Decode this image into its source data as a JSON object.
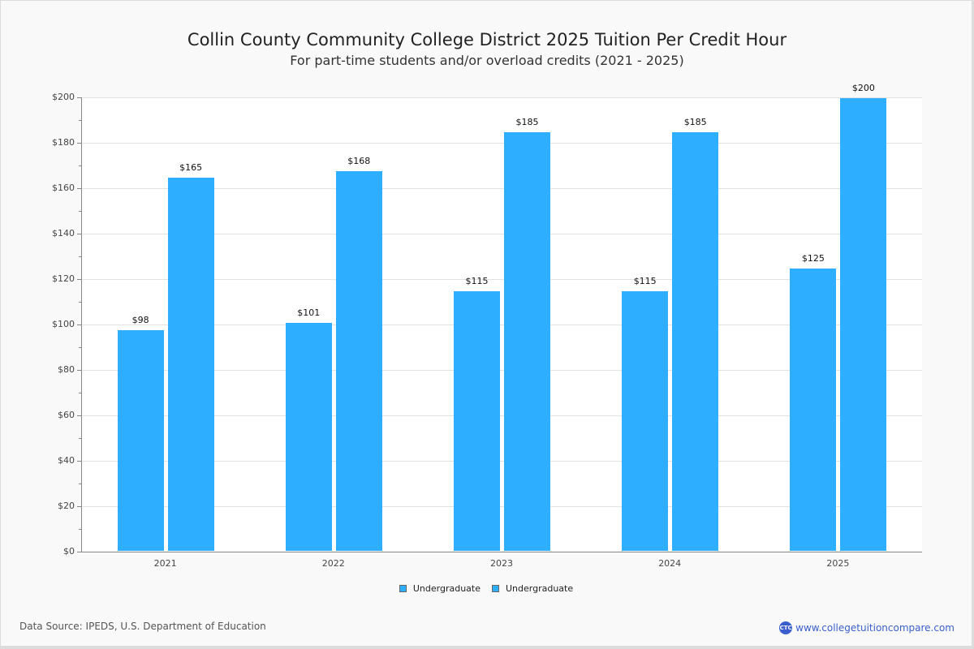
{
  "header": {
    "title": "Collin County Community College District 2025 Tuition Per Credit Hour",
    "subtitle": "For part-time students and/or overload credits (2021 - 2025)"
  },
  "y_ticks": [
    "$0",
    "$20",
    "$40",
    "$60",
    "$80",
    "$100",
    "$120",
    "$140",
    "$160",
    "$180",
    "$200"
  ],
  "legend": [
    {
      "label": "Undergraduate",
      "color": "#2eaefe"
    },
    {
      "label": "Undergraduate",
      "color": "#2eaefe"
    }
  ],
  "footer": {
    "source": "Data Source: IPEDS, U.S. Department of Education",
    "brand_logo": "CTC",
    "brand_url": "www.collegetuitioncompare.com"
  },
  "chart_data": {
    "type": "bar",
    "title": "Collin County Community College District 2025 Tuition Per Credit Hour",
    "subtitle": "For part-time students and/or overload credits (2021 - 2025)",
    "xlabel": "",
    "ylabel": "",
    "categories": [
      "2021",
      "2022",
      "2023",
      "2024",
      "2025"
    ],
    "series": [
      {
        "name": "Undergraduate",
        "values": [
          98,
          101,
          115,
          115,
          125
        ],
        "labels": [
          "$98",
          "$101",
          "$115",
          "$115",
          "$125"
        ],
        "color": "#2eaefe"
      },
      {
        "name": "Undergraduate",
        "values": [
          165,
          168,
          185,
          185,
          200
        ],
        "labels": [
          "$165",
          "$168",
          "$185",
          "$185",
          "$200"
        ],
        "color": "#2eaefe"
      }
    ],
    "ylim": [
      0,
      200
    ],
    "y_tick_step": 20,
    "grid": true,
    "legend_position": "bottom"
  }
}
